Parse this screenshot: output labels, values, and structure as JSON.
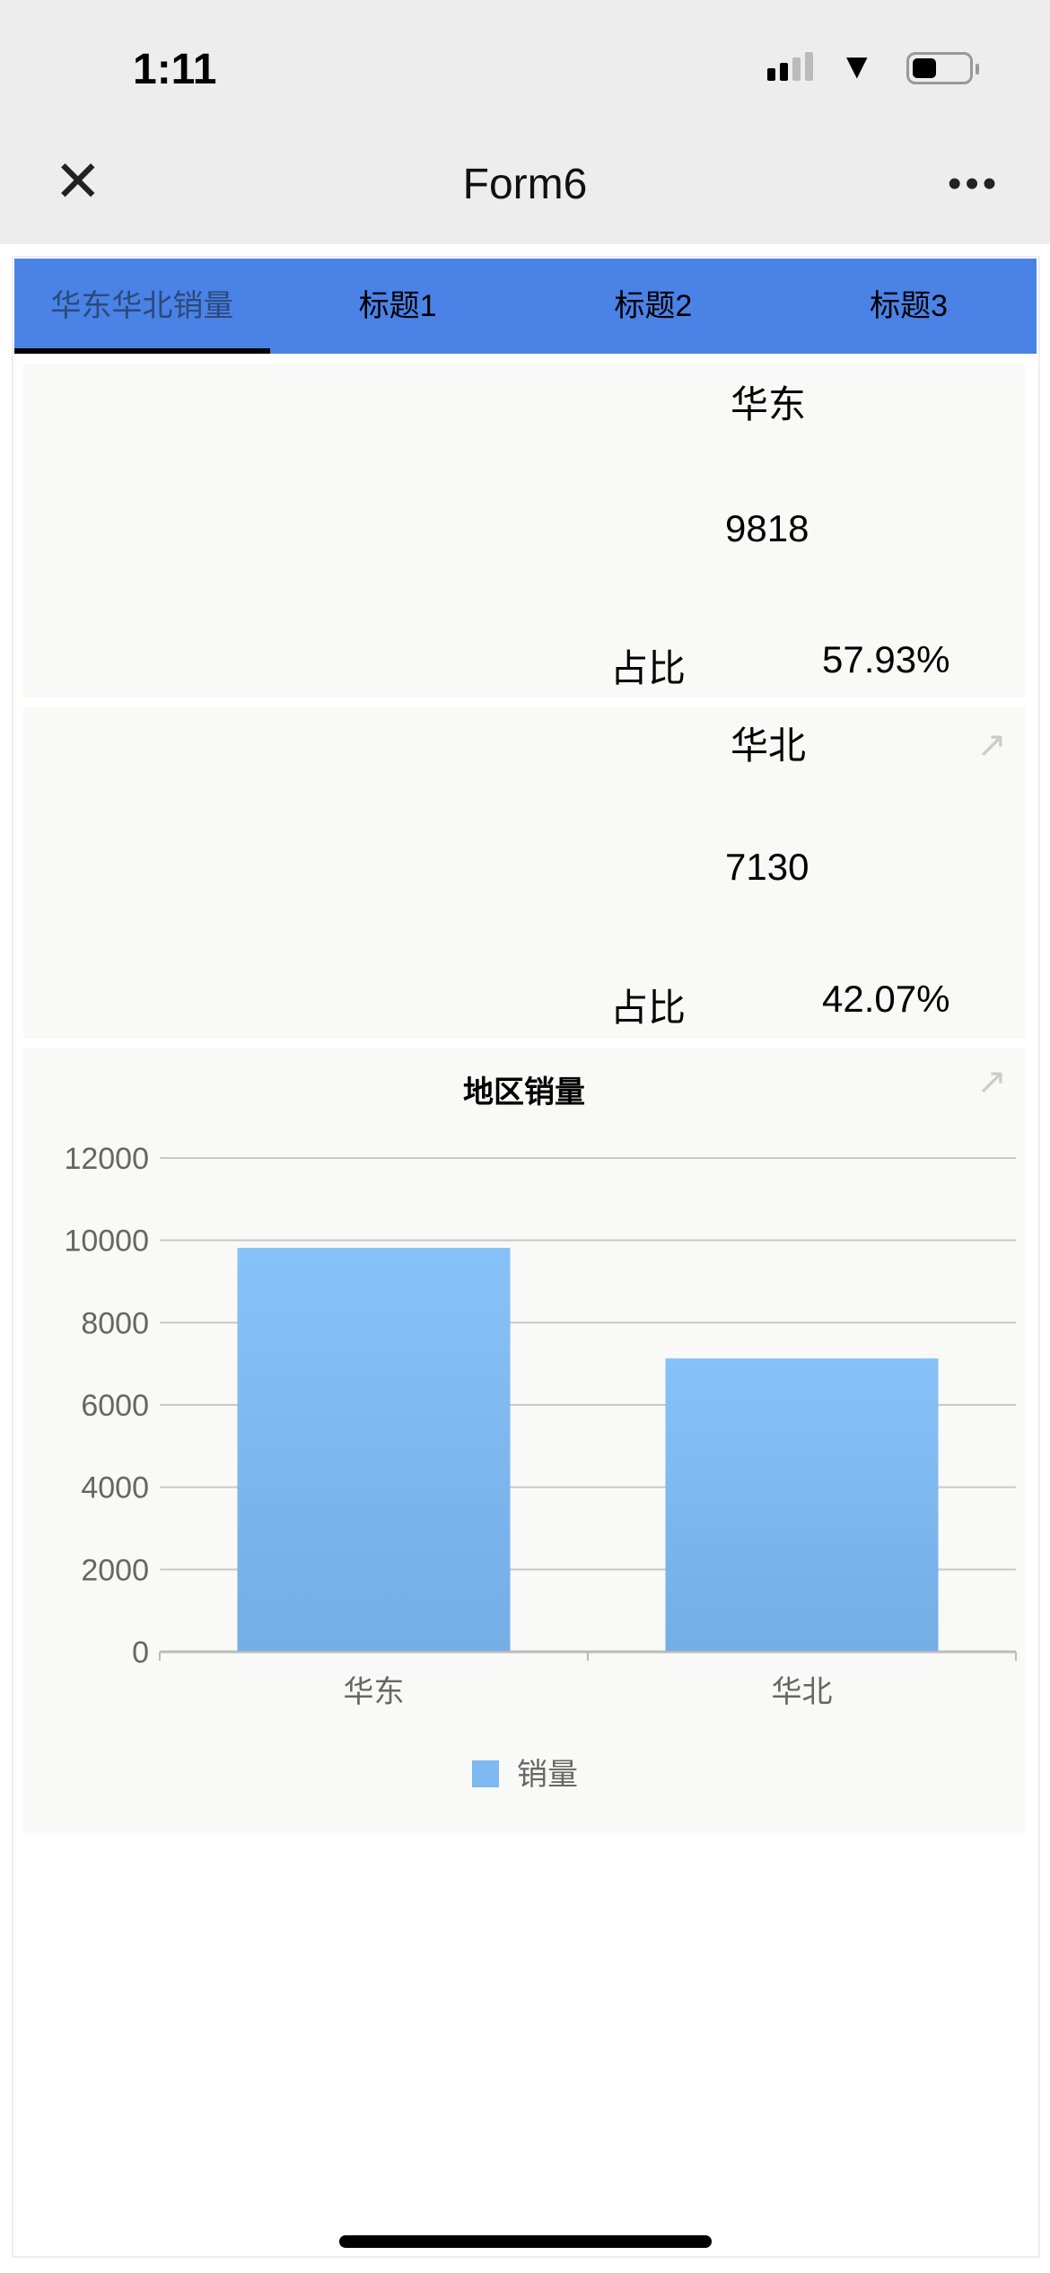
{
  "status": {
    "time": "1:11"
  },
  "nav": {
    "title": "Form6",
    "close_icon": "close-icon",
    "more_icon": "more-icon"
  },
  "tabs": [
    {
      "label": "华东华北销量",
      "active": true
    },
    {
      "label": "标题1"
    },
    {
      "label": "标题2"
    },
    {
      "label": "标题3"
    }
  ],
  "tab_color": "#4a82e6",
  "cards": [
    {
      "region": "华东",
      "value": "9818",
      "ratio_label": "占比",
      "ratio": "57.93%"
    },
    {
      "region": "华北",
      "value": "7130",
      "ratio_label": "占比",
      "ratio": "42.07%"
    }
  ],
  "chart_data": {
    "type": "bar",
    "title": "地区销量",
    "categories": [
      "华东",
      "华北"
    ],
    "series": [
      {
        "name": "销量",
        "values": [
          9818,
          7130
        ],
        "color": "#7db8f0"
      }
    ],
    "ylim": [
      0,
      12000
    ],
    "yticks": [
      "0",
      "2000",
      "4000",
      "6000",
      "8000",
      "10000",
      "12000"
    ],
    "grid": true,
    "legend": "bottom"
  }
}
